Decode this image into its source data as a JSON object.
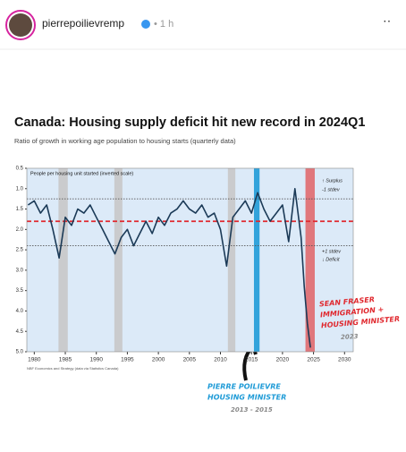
{
  "header": {
    "username": "pierrepoilievremp",
    "time": "• 1 h",
    "menu": "··"
  },
  "chart_data": {
    "type": "line",
    "title": "Canada: Housing supply deficit hit new record in 2024Q1",
    "subtitle": "Ratio of growth in working age population to housing starts (quarterly data)",
    "ylabel": "People per housing unit started (inverted scale)",
    "source": "NBF Economics and Strategy (data via Statistics Canada)",
    "inverted": true,
    "xlim": [
      1978.8,
      2031.4
    ],
    "xticks": [
      1980,
      1985,
      1990,
      1995,
      2000,
      2005,
      2010,
      2015,
      2020,
      2025,
      2030
    ],
    "ylim": [
      0.5,
      5
    ],
    "yticks": [
      0.5,
      {
        "value": 1,
        "label": "1.0"
      },
      1.5,
      {
        "value": 2,
        "label": "2.0"
      },
      2.5,
      {
        "value": 3,
        "label": "3.0"
      },
      3.5,
      {
        "value": 4,
        "label": "4.0"
      },
      4.5,
      {
        "value": 5,
        "label": "5.0"
      }
    ],
    "x": [
      1979,
      1980,
      1981,
      1982,
      1983,
      1984,
      1985,
      1986,
      1987,
      1988,
      1989,
      1990,
      1991,
      1992,
      1993,
      1994,
      1995,
      1996,
      1997,
      1998,
      1999,
      2000,
      2001,
      2002,
      2003,
      2004,
      2005,
      2006,
      2007,
      2008,
      2009,
      2010,
      2011,
      2012,
      2013,
      2014,
      2015,
      2016,
      2017,
      2018,
      2019,
      2020,
      2021,
      2022,
      2023,
      2023.5,
      2024,
      2024.5
    ],
    "series": [
      {
        "name": "People per housing unit started",
        "color": "#1b3a57",
        "values": [
          1.4,
          1.3,
          1.6,
          1.4,
          2.0,
          2.7,
          1.7,
          1.9,
          1.5,
          1.6,
          1.4,
          1.7,
          2.0,
          2.3,
          2.6,
          2.2,
          2.0,
          2.4,
          2.1,
          1.8,
          2.1,
          1.7,
          1.9,
          1.6,
          1.5,
          1.3,
          1.5,
          1.6,
          1.4,
          1.7,
          1.6,
          2.0,
          2.9,
          1.7,
          1.5,
          1.3,
          1.6,
          1.1,
          1.5,
          1.8,
          1.6,
          1.4,
          2.3,
          1.0,
          2.2,
          3.4,
          4.3,
          4.9
        ]
      }
    ],
    "reference_lines": [
      {
        "value": 1.8,
        "color": "#e0282e",
        "style": "dashed"
      },
      {
        "value": 1.25,
        "color": "#555555",
        "style": "dotted"
      },
      {
        "value": 2.4,
        "color": "#555555",
        "style": "dotted"
      }
    ],
    "shaded_periods": [
      {
        "start": 1983.9,
        "end": 1985.4,
        "color": "#c8c8c8"
      },
      {
        "start": 1992.9,
        "end": 1994.2,
        "color": "#c8c8c8"
      },
      {
        "start": 2011.2,
        "end": 2012.4,
        "color": "#c8c8c8"
      },
      {
        "start": 2015.4,
        "end": 2016.3,
        "color": "#1f9bd7"
      },
      {
        "start": 2023.7,
        "end": 2025.2,
        "color": "#e06a6e"
      }
    ],
    "band_labels": [
      "↑ Surplus",
      "-1 stdev",
      "+1 stdev",
      "↓ Deficit"
    ],
    "annotations": [
      {
        "lines": [
          "SEAN FRASER",
          "IMMIGRATION +",
          "HOUSING MINISTER"
        ],
        "color": "#e0282e"
      },
      {
        "lines": [
          "2023"
        ],
        "color": "#888888"
      },
      {
        "lines": [
          "PIERRE POILIEVRE",
          "HOUSING MINISTER"
        ],
        "color": "#1f9bd7"
      },
      {
        "lines": [
          "2013 - 2015"
        ],
        "color": "#888888"
      }
    ]
  }
}
